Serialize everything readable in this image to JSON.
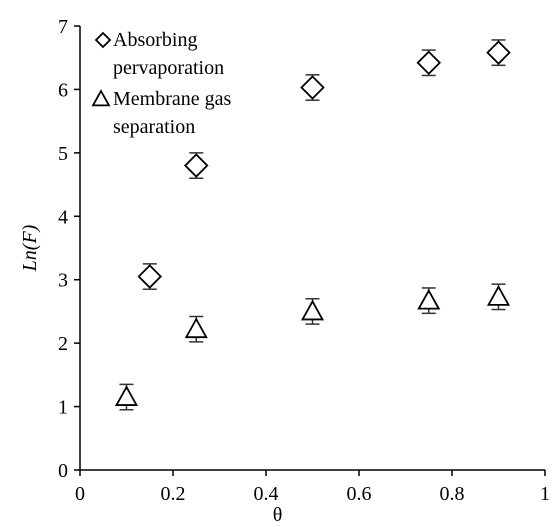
{
  "chart_data": {
    "type": "scatter",
    "xlabel": "θ",
    "ylabel": "Ln(F)",
    "xlim": [
      0,
      1
    ],
    "ylim": [
      0,
      7
    ],
    "x_ticks": [
      "0",
      "0.2",
      "0.4",
      "0.6",
      "0.8",
      "1"
    ],
    "y_ticks": [
      "0",
      "1",
      "2",
      "3",
      "4",
      "5",
      "6",
      "7"
    ],
    "grid": false,
    "legend_position": "top-left",
    "series": [
      {
        "name_lines": [
          "Absorbing",
          "pervaporation"
        ],
        "marker": "diamond",
        "points": [
          {
            "x": 0.15,
            "y": 3.05,
            "err": 0.2
          },
          {
            "x": 0.25,
            "y": 4.8,
            "err": 0.2
          },
          {
            "x": 0.5,
            "y": 6.03,
            "err": 0.2
          },
          {
            "x": 0.75,
            "y": 6.42,
            "err": 0.2
          },
          {
            "x": 0.9,
            "y": 6.58,
            "err": 0.2
          }
        ]
      },
      {
        "name_lines": [
          "Membrane gas",
          "separation"
        ],
        "marker": "triangle",
        "points": [
          {
            "x": 0.1,
            "y": 1.15,
            "err": 0.2
          },
          {
            "x": 0.25,
            "y": 2.22,
            "err": 0.2
          },
          {
            "x": 0.5,
            "y": 2.5,
            "err": 0.2
          },
          {
            "x": 0.75,
            "y": 2.67,
            "err": 0.2
          },
          {
            "x": 0.9,
            "y": 2.73,
            "err": 0.2
          }
        ]
      }
    ]
  }
}
